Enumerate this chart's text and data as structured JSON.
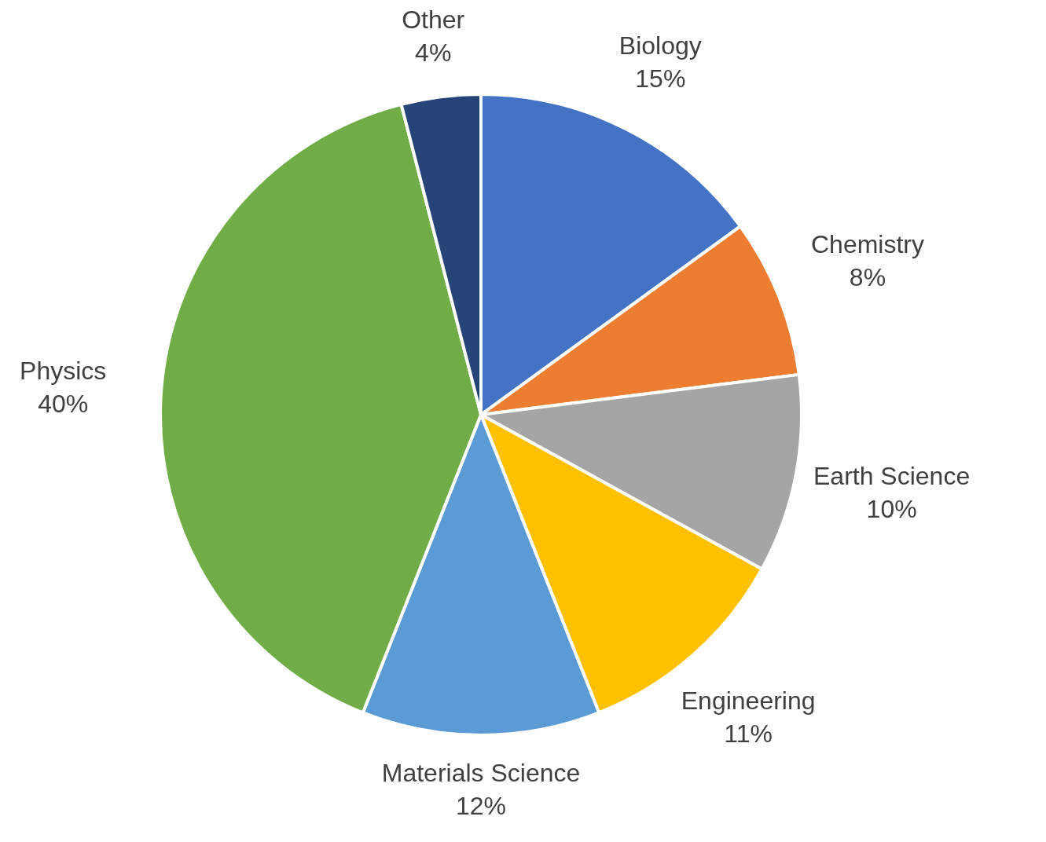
{
  "chart_data": {
    "type": "pie",
    "categories": [
      "Biology",
      "Chemistry",
      "Earth Science",
      "Engineering",
      "Materials Science",
      "Physics",
      "Other"
    ],
    "values": [
      15,
      8,
      10,
      11,
      12,
      40,
      4
    ],
    "value_labels": [
      "15%",
      "8%",
      "10%",
      "11%",
      "12%",
      "40%",
      "4%"
    ],
    "colors": [
      "#4472c4",
      "#ed7d31",
      "#a5a5a5",
      "#ffc000",
      "#5b9bd5",
      "#70ad47",
      "#264478"
    ]
  }
}
